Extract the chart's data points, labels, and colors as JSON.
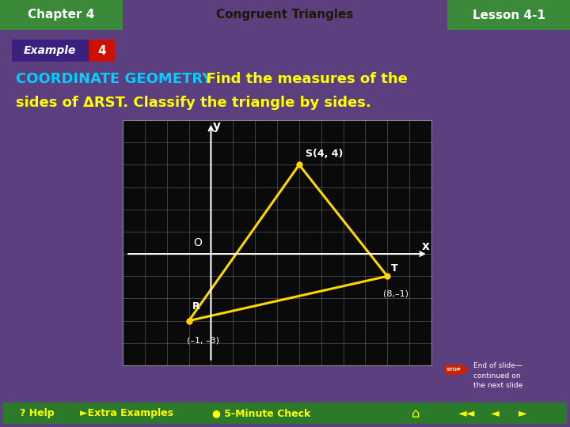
{
  "chapter_text": "Chapter 4",
  "chapter_subtitle": "Congruent Triangles",
  "lesson_text": "Lesson 4-1",
  "points": {
    "R": [
      -1,
      -3
    ],
    "S": [
      4,
      4
    ],
    "T": [
      8,
      -1
    ]
  },
  "xlim": [
    -4,
    10
  ],
  "ylim": [
    -5,
    6
  ],
  "triangle_color": "#FFD700",
  "triangle_linewidth": 2.2,
  "grid_color": "#555555",
  "header_gold": "#EEC900",
  "header_green": "#3a8a3a",
  "outer_purple": "#5b3f7e",
  "main_bg": "#0a0a0a",
  "content_bg": "#0a0a0a",
  "title_cyan": "#00d0ff",
  "title_yellow": "#ffff00",
  "title_white": "#ffffff",
  "badge_purple": "#3c2080",
  "badge_red": "#cc1100",
  "bottom_green": "#2a7a2a",
  "bottom_purple": "#5b3f7e",
  "end_slide_text": "End of slide—\ncontinued on\nthe next slide"
}
